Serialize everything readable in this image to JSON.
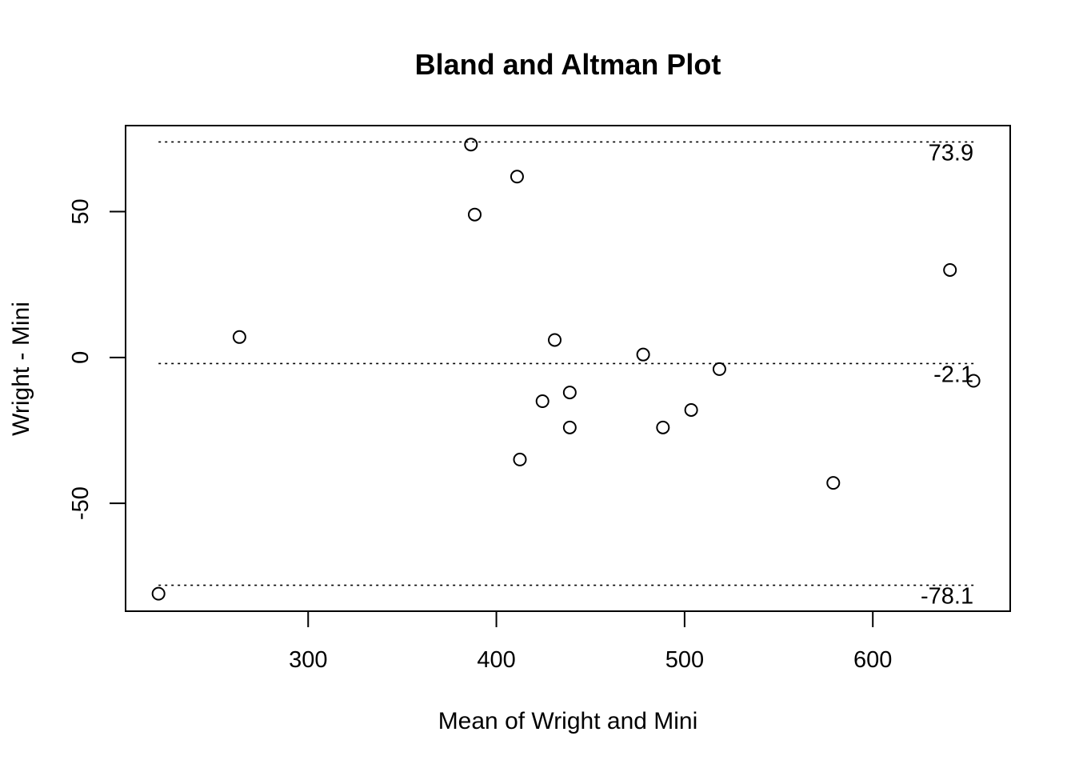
{
  "chart_data": {
    "type": "scatter",
    "title": "Bland and Altman Plot",
    "xlabel": "Mean of Wright and Mini",
    "ylabel": "Wright - Mini",
    "xlim": [
      203,
      673
    ],
    "ylim": [
      -87,
      79.5
    ],
    "xticks": [
      {
        "value": 300,
        "label": "300"
      },
      {
        "value": 400,
        "label": "400"
      },
      {
        "value": 500,
        "label": "500"
      },
      {
        "value": 600,
        "label": "600"
      }
    ],
    "yticks": [
      {
        "value": -50,
        "label": "-50"
      },
      {
        "value": 0,
        "label": "0"
      },
      {
        "value": 50,
        "label": "50"
      }
    ],
    "reference_lines": [
      {
        "value": 73.9,
        "label": "73.9",
        "style": "dotted"
      },
      {
        "value": -2.1,
        "label": "-2.1",
        "style": "dotted"
      },
      {
        "value": -78.1,
        "label": "-78.1",
        "style": "dotted"
      }
    ],
    "grid": false,
    "points": [
      {
        "x": 220.5,
        "y": -81
      },
      {
        "x": 263.5,
        "y": 7
      },
      {
        "x": 386.5,
        "y": 73
      },
      {
        "x": 388.5,
        "y": 49
      },
      {
        "x": 411,
        "y": 62
      },
      {
        "x": 412.5,
        "y": -35
      },
      {
        "x": 424.5,
        "y": -15
      },
      {
        "x": 431,
        "y": 6
      },
      {
        "x": 439,
        "y": -12
      },
      {
        "x": 439,
        "y": -24
      },
      {
        "x": 478,
        "y": 1
      },
      {
        "x": 488.5,
        "y": -24
      },
      {
        "x": 503.5,
        "y": -18
      },
      {
        "x": 518.5,
        "y": -4
      },
      {
        "x": 579,
        "y": -43
      },
      {
        "x": 641,
        "y": 30
      },
      {
        "x": 653.5,
        "y": -8
      }
    ]
  }
}
